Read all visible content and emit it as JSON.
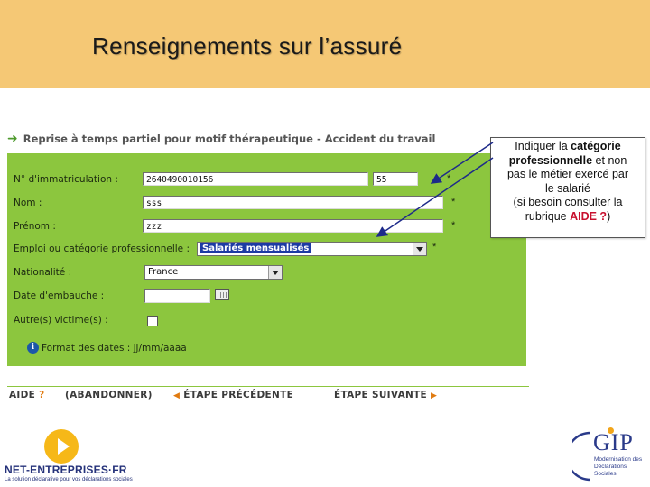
{
  "slide": {
    "title": "Renseignements sur l’assuré"
  },
  "form": {
    "title": "Reprise à temps partiel pour motif thérapeutique - Accident du travail",
    "labels": {
      "immatriculation": "N° d'immatriculation :",
      "nom": "Nom :",
      "prenom": "Prénom :",
      "emploi": "Emploi ou catégorie professionnelle :",
      "nationalite": "Nationalité :",
      "date_embauche": "Date d'embauche :",
      "autres_victimes": "Autre(s) victime(s) :"
    },
    "values": {
      "immatriculation": "2640490010156",
      "immatriculation_key": "55",
      "nom": "sss",
      "prenom": "zzz",
      "emploi": "Salariés mensualisés",
      "nationalite": "France",
      "date_embauche": ""
    },
    "required_mark": "*",
    "date_format_note": "Format des dates : jj/mm/aaaa"
  },
  "nav": {
    "aide": "AIDE",
    "aide_mark": "?",
    "abandonner": "(ABANDONNER)",
    "precedente": "ÉTAPE PRÉCÉDENTE",
    "suivante": "ÉTAPE SUIVANTE"
  },
  "callout": {
    "line1_pre": "Indiquer la ",
    "line1_bold": "catégorie",
    "line2_bold": "professionnelle",
    "line2_post": " et non",
    "line3": "pas le métier exercé par",
    "line4": "le salarié",
    "line5": "(si besoin consulter la",
    "line6_pre": "rubrique ",
    "line6_aide": "AIDE ?",
    "line6_post": ")"
  },
  "logos": {
    "left_name": "NET-ENTREPRISES·FR",
    "left_tagline": "La solution déclarative pour vos déclarations sociales",
    "right_name": "GIP",
    "right_sub": [
      "Modernisation des",
      "Déclarations",
      "Sociales"
    ]
  },
  "colors": {
    "banner": "#f5c875",
    "form_green": "#8cc63e",
    "highlight_blue": "#1d3aa4",
    "aide_red": "#c8102e"
  }
}
